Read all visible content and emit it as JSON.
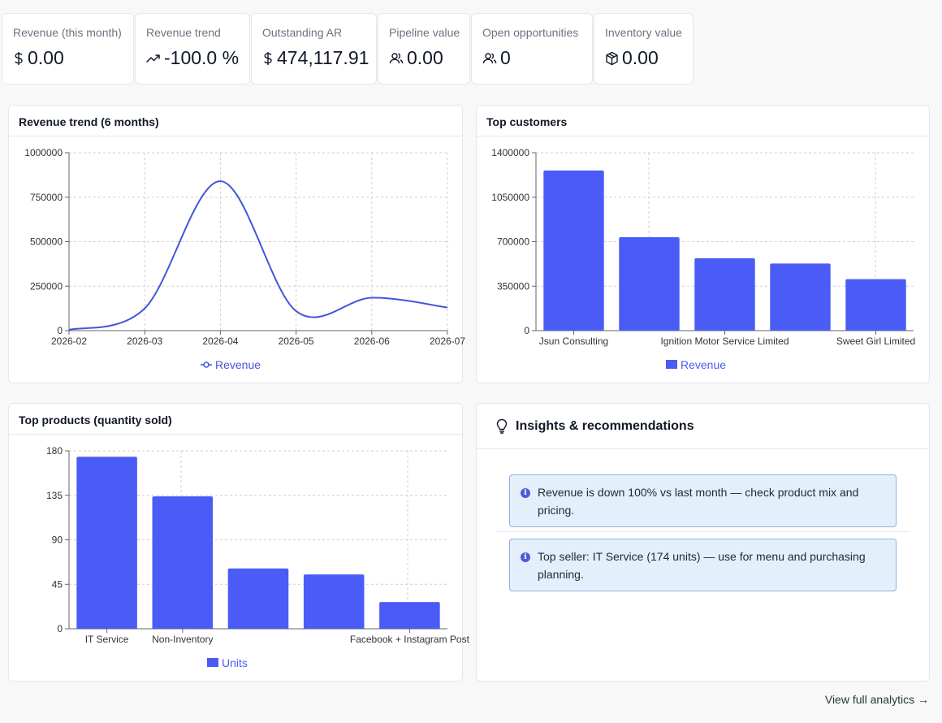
{
  "kpis": [
    {
      "label": "Revenue (this month)",
      "value": "0.00",
      "icon": "dollar-icon"
    },
    {
      "label": "Revenue trend",
      "value": "-100.0 %",
      "icon": "trend-icon"
    },
    {
      "label": "Outstanding AR",
      "value": "474,117.91",
      "icon": "dollar-icon"
    },
    {
      "label": "Pipeline value",
      "value": "0.00",
      "icon": "users-icon"
    },
    {
      "label": "Open opportunities",
      "value": "0",
      "icon": "users-icon"
    },
    {
      "label": "Inventory value",
      "value": "0.00",
      "icon": "box-icon"
    }
  ],
  "revenue_trend": {
    "title": "Revenue trend (6 months)"
  },
  "top_customers": {
    "title": "Top customers"
  },
  "top_products": {
    "title": "Top products (quantity sold)"
  },
  "insights": {
    "title": "Insights & recommendations",
    "items": [
      "Revenue is down 100% vs last month — check product mix and pricing.",
      "Top seller: IT Service (174 units) — use for menu and purchasing planning."
    ]
  },
  "footer": {
    "view_link": "View full analytics →"
  },
  "colors": {
    "accent": "#4a5cf5",
    "line": "#4355d9"
  },
  "chart_data": [
    {
      "type": "line",
      "x": [
        "2026-02",
        "2026-03",
        "2026-04",
        "2026-05",
        "2026-06",
        "2026-07"
      ],
      "series": [
        {
          "name": "Revenue",
          "values": [
            5000,
            125000,
            840000,
            110000,
            185000,
            130000
          ]
        }
      ],
      "y_ticks": [
        "0",
        "250000",
        "500000",
        "750000",
        "1000000"
      ],
      "ylim": [
        0,
        1000000
      ],
      "grid": true,
      "legend": "bottom"
    },
    {
      "type": "bar",
      "categories": [
        "Jsun Consulting",
        "",
        "Ignition Motor Service Limited",
        "",
        "Sweet Girl Limited"
      ],
      "series": [
        {
          "name": "Revenue",
          "values": [
            1260000,
            735000,
            570000,
            528000,
            405000
          ]
        }
      ],
      "y_ticks": [
        "0",
        "350000",
        "700000",
        "1050000",
        "1400000"
      ],
      "ylim": [
        0,
        1400000
      ],
      "grid": true,
      "legend": "bottom"
    },
    {
      "type": "bar",
      "categories": [
        "IT Service",
        "Non-Inventory",
        "",
        "",
        "Facebook + Instagram Post"
      ],
      "series": [
        {
          "name": "Units",
          "values": [
            174,
            134,
            61,
            55,
            27
          ]
        }
      ],
      "y_ticks": [
        "0",
        "45",
        "90",
        "135",
        "180"
      ],
      "ylim": [
        0,
        180
      ],
      "grid": true,
      "legend": "bottom"
    }
  ]
}
